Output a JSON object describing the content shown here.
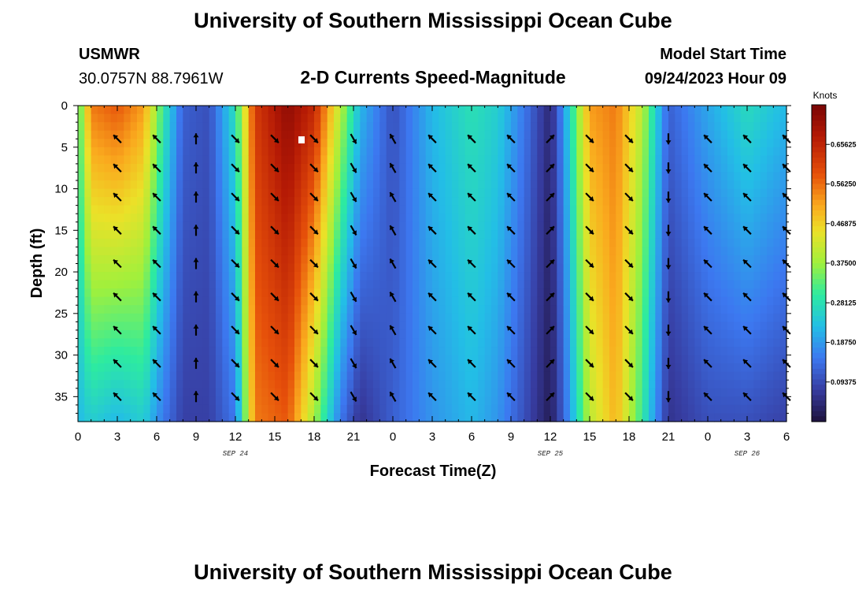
{
  "header": {
    "title": "University of Southern Mississippi Ocean Cube",
    "station": "USMWR",
    "coords": "30.0757N  88.7961W",
    "subtitle": "2-D Currents Speed-Magnitude",
    "model_label": "Model Start Time",
    "model_time": "09/24/2023 Hour 09"
  },
  "footer": {
    "title": "University of Southern Mississippi Ocean Cube"
  },
  "chart_data": {
    "type": "heatmap",
    "title": "2-D Currents Speed-Magnitude",
    "xlabel": "Forecast Time(Z)",
    "ylabel": "Depth (ft)",
    "x_range_hours": [
      0,
      54
    ],
    "ylim": [
      0,
      38
    ],
    "y_inverted": true,
    "x_tick_labels": [
      "0",
      "3",
      "6",
      "9",
      "12",
      "15",
      "18",
      "21",
      "0",
      "3",
      "6",
      "9",
      "12",
      "15",
      "18",
      "21",
      "0",
      "3",
      "6"
    ],
    "y_ticks": [
      0,
      5,
      10,
      15,
      20,
      25,
      30,
      35
    ],
    "date_labels": [
      {
        "text": "SEP 24",
        "hour": 12
      },
      {
        "text": "SEP 25",
        "hour": 36
      },
      {
        "text": "SEP 26",
        "hour": 51
      }
    ],
    "colorbar": {
      "unit": "Knots",
      "min": 0.0,
      "max": 0.75,
      "ticks": [
        "0.09375",
        "0.18750",
        "0.28125",
        "0.37500",
        "0.46875",
        "0.56250",
        "0.65625"
      ]
    },
    "speed_knots_by_hour": [
      {
        "hour": 0,
        "top": 0.3,
        "bottom": 0.22
      },
      {
        "hour": 1,
        "top": 0.55,
        "bottom": 0.25
      },
      {
        "hour": 3,
        "top": 0.58,
        "bottom": 0.22
      },
      {
        "hour": 5,
        "top": 0.52,
        "bottom": 0.25
      },
      {
        "hour": 6.5,
        "top": 0.3,
        "bottom": 0.15
      },
      {
        "hour": 8,
        "top": 0.12,
        "bottom": 0.08
      },
      {
        "hour": 10,
        "top": 0.1,
        "bottom": 0.08
      },
      {
        "hour": 12,
        "top": 0.28,
        "bottom": 0.15
      },
      {
        "hour": 13.5,
        "top": 0.62,
        "bottom": 0.55
      },
      {
        "hour": 16,
        "top": 0.72,
        "bottom": 0.58
      },
      {
        "hour": 18,
        "top": 0.65,
        "bottom": 0.38
      },
      {
        "hour": 20,
        "top": 0.4,
        "bottom": 0.15
      },
      {
        "hour": 21.5,
        "top": 0.22,
        "bottom": 0.06
      },
      {
        "hour": 24,
        "top": 0.1,
        "bottom": 0.12
      },
      {
        "hour": 27,
        "top": 0.22,
        "bottom": 0.18
      },
      {
        "hour": 30,
        "top": 0.28,
        "bottom": 0.22
      },
      {
        "hour": 32,
        "top": 0.25,
        "bottom": 0.18
      },
      {
        "hour": 34,
        "top": 0.15,
        "bottom": 0.1
      },
      {
        "hour": 36,
        "top": 0.04,
        "bottom": 0.02
      },
      {
        "hour": 37,
        "top": 0.18,
        "bottom": 0.12
      },
      {
        "hour": 39,
        "top": 0.52,
        "bottom": 0.4
      },
      {
        "hour": 41,
        "top": 0.55,
        "bottom": 0.5
      },
      {
        "hour": 43,
        "top": 0.4,
        "bottom": 0.3
      },
      {
        "hour": 45,
        "top": 0.12,
        "bottom": 0.06
      },
      {
        "hour": 48,
        "top": 0.2,
        "bottom": 0.1
      },
      {
        "hour": 51,
        "top": 0.27,
        "bottom": 0.1
      },
      {
        "hour": 54,
        "top": 0.22,
        "bottom": 0.08
      }
    ],
    "arrow_depths_ft": [
      4,
      7.5,
      11,
      15,
      19,
      23,
      27,
      31,
      35
    ],
    "arrow_directions_deg_by_hour": [
      {
        "hour": 3,
        "deg": 135
      },
      {
        "hour": 6,
        "deg": 135
      },
      {
        "hour": 9,
        "deg": 90
      },
      {
        "hour": 12,
        "deg": 315
      },
      {
        "hour": 15,
        "deg": 315
      },
      {
        "hour": 18,
        "deg": 315
      },
      {
        "hour": 21,
        "deg": 300
      },
      {
        "hour": 24,
        "deg": 120
      },
      {
        "hour": 27,
        "deg": 135
      },
      {
        "hour": 30,
        "deg": 135
      },
      {
        "hour": 33,
        "deg": 135
      },
      {
        "hour": 36,
        "deg": 45
      },
      {
        "hour": 39,
        "deg": 315
      },
      {
        "hour": 42,
        "deg": 315
      },
      {
        "hour": 45,
        "deg": 270
      },
      {
        "hour": 48,
        "deg": 135
      },
      {
        "hour": 51,
        "deg": 135
      },
      {
        "hour": 54,
        "deg": 135
      }
    ]
  }
}
